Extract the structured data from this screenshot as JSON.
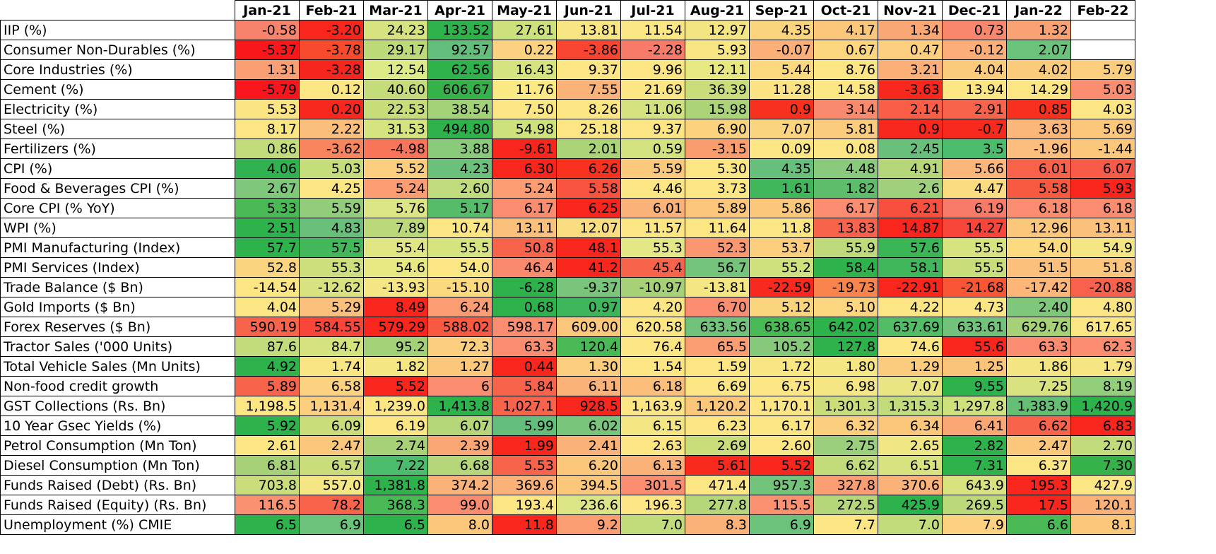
{
  "chart_data": {
    "type": "heatmap",
    "columns": [
      "Jan-21",
      "Feb-21",
      "Mar-21",
      "Apr-21",
      "May-21",
      "Jun-21",
      "Jul-21",
      "Aug-21",
      "Sep-21",
      "Oct-21",
      "Nov-21",
      "Dec-21",
      "Jan-22",
      "Feb-22"
    ],
    "rows": [
      {
        "label": "IIP (%)",
        "values": [
          "-0.58",
          "-3.20",
          "24.23",
          "133.52",
          "27.61",
          "13.81",
          "11.54",
          "12.97",
          "4.35",
          "4.17",
          "1.34",
          "0.73",
          "1.32",
          ""
        ],
        "colors": [
          "#f8836c",
          "#f8261d",
          "#d7e37f",
          "#2db24c",
          "#cce07c",
          "#f7e683",
          "#fbe884",
          "#f2e582",
          "#fbd57e",
          "#fbc87b",
          "#f9a875",
          "#f8876d",
          "#f9a374",
          ""
        ]
      },
      {
        "label": "Consumer Non-Durables (%)",
        "values": [
          "-5.37",
          "-3.78",
          "29.17",
          "92.57",
          "0.22",
          "-3.86",
          "-2.28",
          "5.93",
          "-0.07",
          "0.67",
          "0.47",
          "-0.12",
          "2.07",
          ""
        ],
        "colors": [
          "#f8171b",
          "#f84a2c",
          "#bdda79",
          "#63be7b",
          "#fbd27f",
          "#f84532",
          "#f87a68",
          "#f7e683",
          "#fbb079",
          "#fcd67f",
          "#fcd07e",
          "#fbae79",
          "#6bc27a",
          ""
        ]
      },
      {
        "label": "Core Industries (%)",
        "values": [
          "1.31",
          "-3.28",
          "12.54",
          "62.56",
          "16.43",
          "9.37",
          "9.96",
          "12.11",
          "5.44",
          "8.76",
          "3.21",
          "4.04",
          "4.02",
          "5.79"
        ],
        "colors": [
          "#fa9f74",
          "#f6261e",
          "#ddea88",
          "#2db24c",
          "#d5e47e",
          "#fbe683",
          "#fbe683",
          "#e8e882",
          "#fcd87f",
          "#fbe683",
          "#fcb078",
          "#fbcb7c",
          "#fbcb7c",
          "#fbce7d"
        ]
      },
      {
        "label": "Cement (%)",
        "values": [
          "-5.79",
          "0.12",
          "40.60",
          "606.67",
          "11.76",
          "7.55",
          "21.69",
          "36.39",
          "11.28",
          "14.58",
          "-3.63",
          "13.94",
          "14.29",
          "5.03"
        ],
        "colors": [
          "#f8161c",
          "#fbe683",
          "#c4dd7a",
          "#35b34a",
          "#fbea84",
          "#f9b277",
          "#fbe683",
          "#c9de7b",
          "#fbe383",
          "#fbe683",
          "#f8281e",
          "#fbe683",
          "#fbe683",
          "#fa8c6f"
        ]
      },
      {
        "label": "Electricity (%)",
        "values": [
          "5.53",
          "0.20",
          "22.53",
          "38.54",
          "7.50",
          "8.26",
          "11.06",
          "15.98",
          "0.9",
          "3.14",
          "2.14",
          "2.91",
          "0.85",
          "4.03"
        ],
        "colors": [
          "#fbe482",
          "#f8281e",
          "#c6dd79",
          "#a3d177",
          "#fbe683",
          "#fbe683",
          "#d3e27f",
          "#aad477",
          "#f8311f",
          "#fa8a6e",
          "#fb5e47",
          "#f8634b",
          "#f8311f",
          "#fbe683"
        ]
      },
      {
        "label": "Steel (%)",
        "values": [
          "8.17",
          "2.22",
          "31.53",
          "494.80",
          "54.98",
          "25.18",
          "9.37",
          "6.90",
          "7.07",
          "5.81",
          "0.9",
          "-0.7",
          "3.63",
          "5.69"
        ],
        "colors": [
          "#fbe683",
          "#fbbe7b",
          "#d5e47e",
          "#2db24c",
          "#cde17c",
          "#fbe683",
          "#fbe683",
          "#fbd27e",
          "#fbd47f",
          "#fbcc7d",
          "#f8281e",
          "#f82a1e",
          "#fbb77a",
          "#fbc87b"
        ]
      },
      {
        "label": "Fertilizers (%)",
        "values": [
          "0.86",
          "-3.62",
          "-4.98",
          "3.88",
          "-9.61",
          "2.01",
          "0.59",
          "-3.15",
          "0.09",
          "0.08",
          "2.45",
          "3.5",
          "-1.96",
          "-1.44"
        ],
        "colors": [
          "#c3dc7b",
          "#f8855e",
          "#f8755a",
          "#8acb7b",
          "#f8261d",
          "#aad477",
          "#d2e27f",
          "#f99d6f",
          "#fbe683",
          "#fbe683",
          "#69c07b",
          "#4bbb6c",
          "#fbbe7c",
          "#fbc87b"
        ]
      },
      {
        "label": "CPI (%)",
        "values": [
          "4.06",
          "5.03",
          "5.52",
          "4.23",
          "6.30",
          "6.26",
          "5.59",
          "5.30",
          "4.35",
          "4.48",
          "4.91",
          "5.66",
          "6.01",
          "6.07"
        ],
        "colors": [
          "#31b250",
          "#c5dd7a",
          "#fbcd7e",
          "#6bc17b",
          "#f8261d",
          "#f8321f",
          "#fbc97c",
          "#fbe683",
          "#66bf7b",
          "#8aca7c",
          "#b6d67a",
          "#fbb679",
          "#f8624b",
          "#f85b47"
        ]
      },
      {
        "label": "Food & Beverages CPI (%)",
        "values": [
          "2.67",
          "4.25",
          "5.24",
          "2.60",
          "5.24",
          "5.58",
          "4.46",
          "3.73",
          "1.61",
          "1.82",
          "2.6",
          "4.47",
          "5.58",
          "5.93"
        ],
        "colors": [
          "#7fc77b",
          "#fbe683",
          "#fb9c73",
          "#c0db7b",
          "#fb9c73",
          "#f8533f",
          "#fbe683",
          "#fbe683",
          "#40b75a",
          "#5dbd6a",
          "#9fd07b",
          "#fbdc80",
          "#f85a41",
          "#f8261d"
        ]
      },
      {
        "label": "Core CPI (% YoY)",
        "values": [
          "5.33",
          "5.59",
          "5.76",
          "5.17",
          "6.17",
          "6.25",
          "6.01",
          "5.89",
          "5.86",
          "6.17",
          "6.21",
          "6.19",
          "6.18",
          "6.18"
        ],
        "colors": [
          "#49b956",
          "#92cd7b",
          "#dce585",
          "#57bc6a",
          "#fa8c6f",
          "#f8261d",
          "#fbb278",
          "#fbc57b",
          "#fbc87b",
          "#fa8c6f",
          "#f8503f",
          "#f87a68",
          "#fa8c6f",
          "#fa8c6f"
        ]
      },
      {
        "label": "WPI (%)",
        "values": [
          "2.51",
          "4.83",
          "7.89",
          "10.74",
          "13.11",
          "12.07",
          "11.57",
          "11.64",
          "11.8",
          "13.83",
          "14.87",
          "14.27",
          "12.96",
          "13.11"
        ],
        "colors": [
          "#2db24c",
          "#69c07b",
          "#bcd97a",
          "#fbe683",
          "#fbc07b",
          "#fbdd81",
          "#fbe683",
          "#fbe683",
          "#fbe683",
          "#f8634b",
          "#f8261d",
          "#f8473a",
          "#fbc87b",
          "#fbc07b"
        ]
      },
      {
        "label": "PMI Manufacturing (Index)",
        "values": [
          "57.7",
          "57.5",
          "55.4",
          "55.5",
          "50.8",
          "48.1",
          "55.3",
          "52.3",
          "53.7",
          "55.9",
          "57.6",
          "55.5",
          "54.0",
          "54.9"
        ],
        "colors": [
          "#2db24c",
          "#42b85b",
          "#e1e684",
          "#d7e37f",
          "#f8634b",
          "#f8261d",
          "#e3e785",
          "#fa9670",
          "#fbce7d",
          "#bfda7a",
          "#3bb657",
          "#d7e37f",
          "#fbda80",
          "#f4e683"
        ]
      },
      {
        "label": "PMI Services (Index)",
        "values": [
          "52.8",
          "55.3",
          "54.6",
          "54.0",
          "46.4",
          "41.2",
          "45.4",
          "56.7",
          "55.2",
          "58.4",
          "58.1",
          "55.5",
          "51.5",
          "51.8"
        ],
        "colors": [
          "#fbd47f",
          "#ccdf7c",
          "#e8e882",
          "#fbe683",
          "#f98a6e",
          "#f8261d",
          "#f8634b",
          "#75c47b",
          "#cfe17c",
          "#2db24c",
          "#40b75a",
          "#c8de7a",
          "#fbc07b",
          "#fbc57b"
        ]
      },
      {
        "label": "Trade Balance ($ Bn)",
        "values": [
          "-14.54",
          "-12.62",
          "-13.93",
          "-15.10",
          "-6.28",
          "-9.37",
          "-10.97",
          "-13.81",
          "-22.59",
          "-19.73",
          "-22.91",
          "-21.68",
          "-17.42",
          "-20.88"
        ],
        "colors": [
          "#fbe683",
          "#d8e380",
          "#f5e683",
          "#fbd97f",
          "#2db24c",
          "#78c57b",
          "#a6d177",
          "#f4e683",
          "#f8291e",
          "#f8834c",
          "#f8261d",
          "#f85635",
          "#fbb678",
          "#f8614b"
        ]
      },
      {
        "label": "Gold Imports ($ Bn)",
        "values": [
          "4.04",
          "5.29",
          "8.49",
          "6.24",
          "0.68",
          "0.97",
          "4.20",
          "6.70",
          "5.12",
          "5.10",
          "4.22",
          "4.73",
          "2.40",
          "4.80"
        ],
        "colors": [
          "#fbe683",
          "#fbc07b",
          "#f8261d",
          "#fb9c73",
          "#2db24c",
          "#3db55a",
          "#fbe683",
          "#fa8c6f",
          "#fbd57e",
          "#fbd67f",
          "#fbe683",
          "#fbe683",
          "#7fc77b",
          "#fbe683"
        ]
      },
      {
        "label": "Forex Reserves ($ Bn)",
        "values": [
          "590.19",
          "584.55",
          "579.29",
          "588.02",
          "598.17",
          "609.00",
          "620.58",
          "633.56",
          "638.65",
          "642.02",
          "637.69",
          "633.61",
          "629.76",
          "617.65"
        ],
        "colors": [
          "#f8634b",
          "#f8473a",
          "#f8261d",
          "#f85a41",
          "#fa8c6f",
          "#fbc87b",
          "#fbe683",
          "#71c37b",
          "#49b956",
          "#2db24c",
          "#52bc67",
          "#71c37b",
          "#a6d177",
          "#fbe683"
        ]
      },
      {
        "label": "Tractor Sales ('000 Units)",
        "values": [
          "87.6",
          "84.7",
          "95.2",
          "72.3",
          "63.3",
          "120.4",
          "76.4",
          "65.5",
          "105.2",
          "127.8",
          "74.6",
          "55.6",
          "63.3",
          "62.3"
        ],
        "colors": [
          "#c3dc7b",
          "#d5e37f",
          "#a3d177",
          "#fbcf7e",
          "#fa8c6f",
          "#49b956",
          "#fbe683",
          "#fa9d73",
          "#87c97b",
          "#2db24c",
          "#fbe683",
          "#f8261d",
          "#fa8c6f",
          "#fa8c6f"
        ]
      },
      {
        "label": "Total Vehicle Sales (Mn Units)",
        "values": [
          "4.92",
          "1.74",
          "1.82",
          "1.27",
          "0.44",
          "1.30",
          "1.54",
          "1.59",
          "1.72",
          "1.80",
          "1.29",
          "1.25",
          "1.86",
          "1.79"
        ],
        "colors": [
          "#2db24c",
          "#f7e683",
          "#f4e683",
          "#fbc87b",
          "#f8261d",
          "#fbcd7e",
          "#fbe683",
          "#fbe683",
          "#f8e683",
          "#f4e683",
          "#fbcc7d",
          "#fbc47b",
          "#f2e582",
          "#f5e683"
        ]
      },
      {
        "label": "Non-food credit growth",
        "values": [
          "5.89",
          "6.58",
          "5.52",
          "6",
          "5.84",
          "6.11",
          "6.18",
          "6.69",
          "6.75",
          "6.98",
          "7.07",
          "9.55",
          "7.25",
          "8.19"
        ],
        "colors": [
          "#f8634b",
          "#fbd27f",
          "#f8261d",
          "#fa8c6f",
          "#f8634b",
          "#fbb278",
          "#fbbe7b",
          "#fbe683",
          "#fbe683",
          "#f4e683",
          "#eae583",
          "#2db24c",
          "#d8e380",
          "#93ce7b"
        ]
      },
      {
        "label": "GST Collections (Rs. Bn)",
        "values": [
          "1,198.5",
          "1,131.4",
          "1,239.0",
          "1,413.8",
          "1,027.1",
          "928.5",
          "1,163.9",
          "1,120.2",
          "1,170.1",
          "1,301.3",
          "1,315.3",
          "1,297.8",
          "1,383.9",
          "1,420.9"
        ],
        "colors": [
          "#fbe683",
          "#fbcf7e",
          "#fbe683",
          "#2db24c",
          "#f8634b",
          "#f8261d",
          "#fbe683",
          "#fbc87b",
          "#fbe683",
          "#c9de7b",
          "#c3dc7b",
          "#cde17c",
          "#64bf74",
          "#2db24c"
        ]
      },
      {
        "label": "10 Year Gsec Yields (%)",
        "values": [
          "5.92",
          "6.09",
          "6.19",
          "6.07",
          "5.99",
          "6.02",
          "6.15",
          "6.23",
          "6.17",
          "6.32",
          "6.34",
          "6.41",
          "6.62",
          "6.83"
        ],
        "colors": [
          "#2db24c",
          "#c9de7b",
          "#fbe683",
          "#b6d67a",
          "#63be7b",
          "#78c57b",
          "#f4e683",
          "#fbe683",
          "#fbe683",
          "#fbcf7e",
          "#fbc87b",
          "#fba775",
          "#f8634b",
          "#f8261d"
        ]
      },
      {
        "label": "Petrol Consumption (Mn Ton)",
        "values": [
          "2.61",
          "2.47",
          "2.74",
          "2.39",
          "1.99",
          "2.41",
          "2.63",
          "2.69",
          "2.60",
          "2.75",
          "2.65",
          "2.82",
          "2.47",
          "2.70"
        ],
        "colors": [
          "#fbe683",
          "#fbc87b",
          "#a6d177",
          "#fba775",
          "#f8261d",
          "#fbb278",
          "#fbe683",
          "#c9de7b",
          "#fbe683",
          "#9ccf7c",
          "#f0e683",
          "#2db24c",
          "#fbc87b",
          "#c3dc7b"
        ]
      },
      {
        "label": "Diesel Consumption (Mn Ton)",
        "values": [
          "6.81",
          "6.57",
          "7.22",
          "6.68",
          "5.53",
          "6.20",
          "6.13",
          "5.61",
          "5.52",
          "6.62",
          "6.51",
          "7.31",
          "6.37",
          "7.30"
        ],
        "colors": [
          "#a6d177",
          "#c9de7b",
          "#4bbb6c",
          "#b6d67a",
          "#f8634b",
          "#fbc87b",
          "#fbb278",
          "#f82a1e",
          "#f8261d",
          "#c3dc7b",
          "#d8e380",
          "#2db24c",
          "#fbe683",
          "#35b34a"
        ]
      },
      {
        "label": "Funds Raised (Debt) (Rs. Bn)",
        "values": [
          "703.8",
          "557.0",
          "1,381.8",
          "374.2",
          "369.6",
          "394.5",
          "301.5",
          "471.4",
          "957.3",
          "327.8",
          "370.6",
          "643.9",
          "195.3",
          "427.9"
        ],
        "colors": [
          "#c9de7b",
          "#f4e683",
          "#2db24c",
          "#fbb278",
          "#fbb278",
          "#fbc87b",
          "#fa8c6f",
          "#fbe683",
          "#72c47b",
          "#fa9d73",
          "#fbb278",
          "#d8e380",
          "#f8261d",
          "#fbe683"
        ]
      },
      {
        "label": "Funds Raised (Equity) (Rs. Bn)",
        "values": [
          "116.5",
          "78.2",
          "368.3",
          "99.0",
          "193.4",
          "236.6",
          "196.3",
          "277.8",
          "115.5",
          "272.5",
          "425.9",
          "269.5",
          "17.5",
          "120.1"
        ],
        "colors": [
          "#fa9170",
          "#f8634b",
          "#49b956",
          "#fa8c6f",
          "#fbe683",
          "#dce585",
          "#fbe683",
          "#b6d67a",
          "#fa9170",
          "#b6d67a",
          "#2db24c",
          "#bcd97a",
          "#f8261d",
          "#fbb278"
        ]
      },
      {
        "label": "Unemployment (%) CMIE",
        "values": [
          "6.5",
          "6.9",
          "6.5",
          "8.0",
          "11.8",
          "9.2",
          "7.0",
          "8.3",
          "6.9",
          "7.7",
          "7.0",
          "7.9",
          "6.6",
          "8.1"
        ],
        "colors": [
          "#2db24c",
          "#6bc27a",
          "#2db24c",
          "#fbc87b",
          "#f8261d",
          "#fa9d73",
          "#c3dc7b",
          "#fbb278",
          "#6bc27a",
          "#fbe683",
          "#c3dc7b",
          "#fbd27f",
          "#49b956",
          "#fbc87b"
        ]
      }
    ]
  }
}
